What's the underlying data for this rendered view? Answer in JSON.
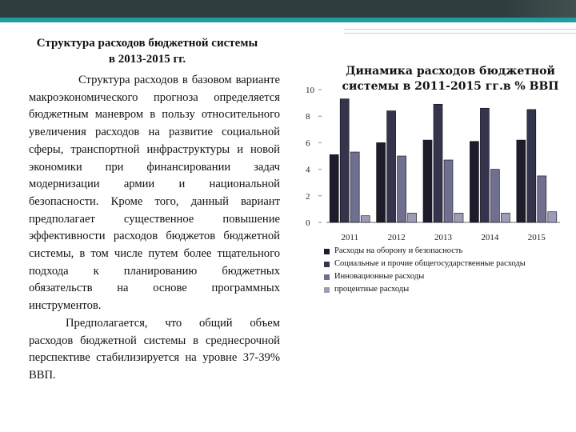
{
  "slide": {
    "title_line1": "Структура расходов бюджетной системы",
    "title_line2": "в 2013-2015 гг.",
    "paragraph1": "Структура расходов в базовом варианте макроэкономического прогноза определяется бюджетным маневром в пользу относительного увеличения расходов на развитие социальной сферы, транспортной инфраструктуры и новой экономики при финансировании задач модернизации армии и национальной безопасности. Кроме того, данный вариант предполагает существенное повышение эффективности расходов бюджетов бюджетной системы, в том числе путем более тщательного подхода к планированию бюджетных обязательств на основе программных инструментов.",
    "paragraph2": "Предполагается, что общий объем расходов бюджетной системы в среднесрочной перспективе стабилизируется на уровне 37-39% ВВП."
  },
  "chart_data": {
    "type": "bar",
    "title": "Динамика расходов бюджетной системы в 2011-2015 гг.в % ВВП",
    "categories": [
      "2011",
      "2012",
      "2013",
      "2014",
      "2015"
    ],
    "ylim": [
      0,
      10
    ],
    "yticks": [
      "0",
      "2",
      "4",
      "6",
      "8",
      "10"
    ],
    "grid": false,
    "legend_position": "bottom",
    "series": [
      {
        "name": "Расходы на оборону и безопасность",
        "color": "#1c1c2a",
        "values": [
          5.1,
          6.0,
          6.2,
          6.1,
          6.2
        ]
      },
      {
        "name": "Социальные и прочие общегосударственные расходы",
        "color": "#34344c",
        "values": [
          9.3,
          8.4,
          8.9,
          8.6,
          8.5
        ]
      },
      {
        "name": "Инновационные расходы",
        "color": "#6f6f90",
        "values": [
          5.3,
          5.0,
          4.7,
          4.0,
          3.5
        ]
      },
      {
        "name": "процентные расходы",
        "color": "#9c9cb8",
        "values": [
          0.5,
          0.7,
          0.7,
          0.7,
          0.8
        ]
      }
    ]
  }
}
